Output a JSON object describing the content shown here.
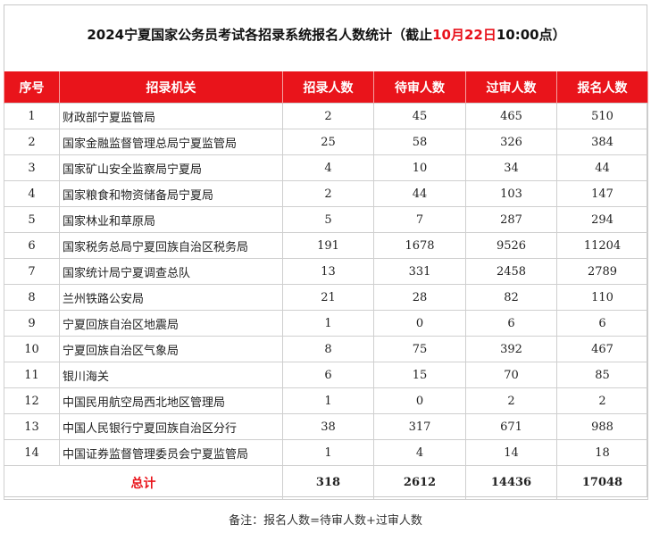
{
  "title": {
    "prefix": "2024宁夏国家公务员考试各招录系统报名人数统计（截止",
    "highlight": "10月22日",
    "suffix": "10:00点）"
  },
  "headers": [
    "序号",
    "招录机关",
    "招录人数",
    "待审人数",
    "过审人数",
    "报名人数"
  ],
  "rows": [
    [
      "1",
      "财政部宁夏监管局",
      "2",
      "45",
      "465",
      "510"
    ],
    [
      "2",
      "国家金融监督管理总局宁夏监管局",
      "25",
      "58",
      "326",
      "384"
    ],
    [
      "3",
      "国家矿山安全监察局宁夏局",
      "4",
      "10",
      "34",
      "44"
    ],
    [
      "4",
      "国家粮食和物资储备局宁夏局",
      "2",
      "44",
      "103",
      "147"
    ],
    [
      "5",
      "国家林业和草原局",
      "5",
      "7",
      "287",
      "294"
    ],
    [
      "6",
      "国家税务总局宁夏回族自治区税务局",
      "191",
      "1678",
      "9526",
      "11204"
    ],
    [
      "7",
      "国家统计局宁夏调查总队",
      "13",
      "331",
      "2458",
      "2789"
    ],
    [
      "8",
      "兰州铁路公安局",
      "21",
      "28",
      "82",
      "110"
    ],
    [
      "9",
      "宁夏回族自治区地震局",
      "1",
      "0",
      "6",
      "6"
    ],
    [
      "10",
      "宁夏回族自治区气象局",
      "8",
      "75",
      "392",
      "467"
    ],
    [
      "11",
      "银川海关",
      "6",
      "15",
      "70",
      "85"
    ],
    [
      "12",
      "中国民用航空局西北地区管理局",
      "1",
      "0",
      "2",
      "2"
    ],
    [
      "13",
      "中国人民银行宁夏回族自治区分行",
      "38",
      "317",
      "671",
      "988"
    ],
    [
      "14",
      "中国证券监督管理委员会宁夏监管局",
      "1",
      "4",
      "14",
      "18"
    ]
  ],
  "total": {
    "label": "总计",
    "recruit": "318",
    "pending": "2612",
    "approved": "14436",
    "applicants": "17048"
  },
  "note": "备注：报名人数=待审人数+过审人数",
  "colors": {
    "header_bg": "#e9141b",
    "highlight": "#e8101a"
  }
}
